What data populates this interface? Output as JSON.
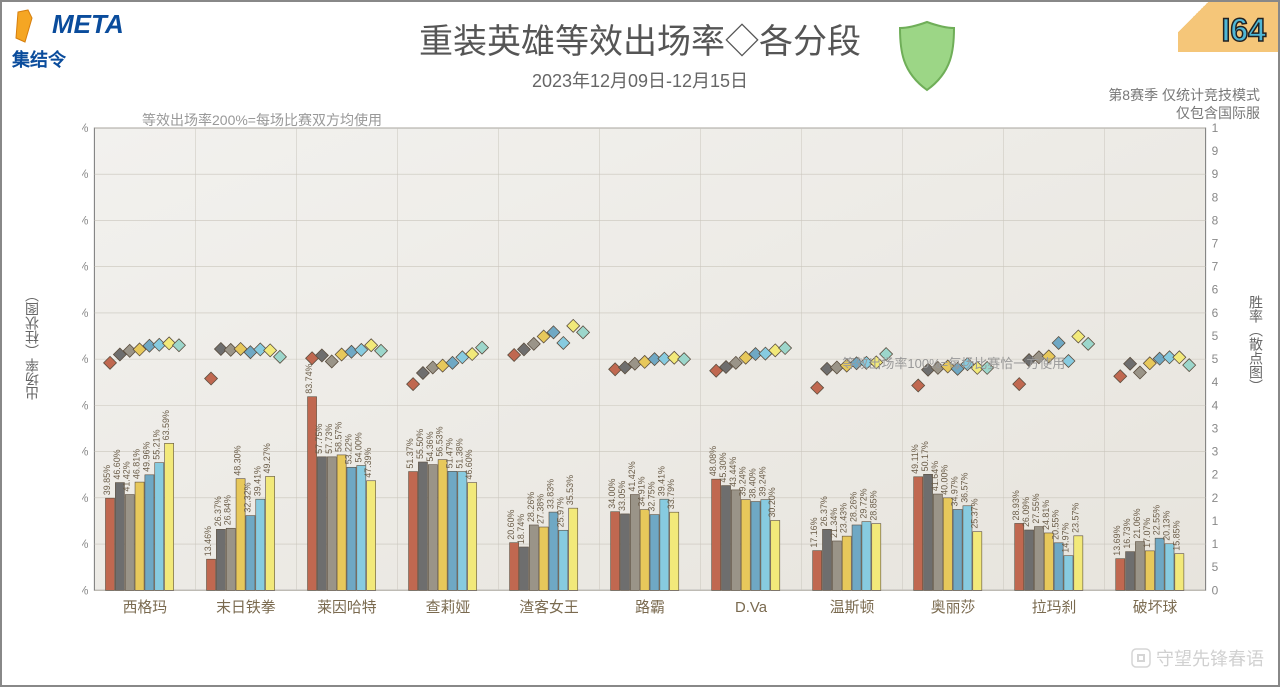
{
  "title": "重装英雄等效出场率◇各分段",
  "subtitle": "2023年12月09日-12月15日",
  "issue": "I64",
  "logo_top": "META",
  "logo_bottom": "集结令",
  "note_left": "等效出场率200%=每场比赛双方均使用",
  "note_mid": "等效出场率100%=每场比赛恰一方使用",
  "note_right_1": "第8赛季 仅统计竞技模式",
  "note_right_2": "仅包含国际服",
  "y_left_label": "出场率（柱状图）",
  "y_right_label": "胜率（散点图）",
  "watermark": "守望先锋春语",
  "left_axis": {
    "min": 0,
    "max": 200,
    "step": 20,
    "suffix": "%"
  },
  "right_axis": {
    "min": 0,
    "max": 100,
    "step": 5,
    "suffix": "%"
  },
  "background_color": "#ffffff",
  "plot_bg_gradient": [
    "#f2f1ee",
    "#e7e4dd"
  ],
  "grid_color": "#c9c5bb",
  "border_color": "#777",
  "bar_border": "#5b4e3f",
  "bar_label_color": "#6a5c48",
  "bar_label_fontsize": 9,
  "axis_tick_color": "#888",
  "axis_tick_fontsize": 12,
  "cat_label_color": "#7a6a4f",
  "cat_label_fontsize": 15,
  "tier_colors": [
    "#c06850",
    "#6e6e6e",
    "#9a9488",
    "#e7c85b",
    "#6fa8c4",
    "#87cbe0",
    "#f2e97a",
    "#9cd6cb"
  ],
  "diamond_border": "#5b4e3f",
  "diamond_size": 13,
  "heroes": [
    {
      "name": "西格玛",
      "pick": [
        39.85,
        46.6,
        41.42,
        46.81,
        49.96,
        55.21,
        63.59,
        null
      ],
      "win": [
        49.2,
        51.0,
        51.8,
        52.1,
        52.9,
        53.1,
        53.4,
        53.0
      ]
    },
    {
      "name": "末日铁拳",
      "pick": [
        13.46,
        26.37,
        26.84,
        48.3,
        32.32,
        39.41,
        49.27,
        null
      ],
      "win": [
        45.8,
        52.2,
        52.0,
        52.2,
        51.5,
        52.1,
        51.9,
        50.5
      ]
    },
    {
      "name": "莱因哈特",
      "pick": [
        83.74,
        57.75,
        57.73,
        58.57,
        53.22,
        54.0,
        47.39,
        null
      ],
      "win": [
        50.2,
        50.8,
        49.5,
        51.0,
        51.6,
        52.0,
        53.0,
        51.8
      ]
    },
    {
      "name": "查莉娅",
      "pick": [
        51.37,
        55.5,
        54.36,
        56.53,
        51.47,
        51.38,
        46.6,
        null
      ],
      "win": [
        44.6,
        47.0,
        48.2,
        48.6,
        49.2,
        50.4,
        51.1,
        52.5
      ]
    },
    {
      "name": "渣客女王",
      "pick": [
        20.6,
        18.74,
        28.26,
        27.38,
        33.83,
        25.97,
        35.53,
        null
      ],
      "win": [
        50.9,
        52.1,
        53.3,
        54.9,
        55.8,
        53.5,
        57.2,
        55.8
      ]
    },
    {
      "name": "路霸",
      "pick": [
        34.0,
        33.05,
        41.42,
        34.91,
        32.75,
        39.41,
        33.79,
        null
      ],
      "win": [
        47.8,
        48.2,
        49.0,
        49.4,
        50.0,
        50.1,
        50.3,
        50.0
      ]
    },
    {
      "name": "D.Va",
      "pick": [
        48.08,
        45.3,
        43.44,
        39.24,
        38.4,
        39.24,
        30.2,
        null
      ],
      "win": [
        47.5,
        48.3,
        49.2,
        50.3,
        51.1,
        51.2,
        51.9,
        52.4
      ]
    },
    {
      "name": "温斯顿",
      "pick": [
        17.16,
        26.37,
        21.34,
        23.43,
        28.26,
        29.72,
        28.85,
        null
      ],
      "win": [
        43.8,
        47.9,
        48.2,
        48.6,
        49.1,
        49.2,
        49.3,
        51.1
      ]
    },
    {
      "name": "奥丽莎",
      "pick": [
        49.11,
        50.17,
        41.64,
        40.0,
        34.97,
        36.57,
        25.37,
        null
      ],
      "win": [
        44.3,
        47.7,
        48.1,
        48.4,
        47.9,
        48.9,
        48.1,
        48.1
      ]
    },
    {
      "name": "拉玛刹",
      "pick": [
        28.93,
        26.09,
        27.55,
        24.81,
        20.55,
        14.97,
        23.57,
        null
      ],
      "win": [
        44.6,
        49.8,
        50.4,
        50.6,
        53.5,
        49.6,
        54.9,
        53.3
      ]
    },
    {
      "name": "破坏球",
      "pick": [
        13.69,
        16.73,
        21.06,
        17.07,
        22.55,
        20.13,
        15.85,
        null
      ],
      "win": [
        46.3,
        49.0,
        47.1,
        49.1,
        50.1,
        50.4,
        50.4,
        48.7
      ]
    }
  ]
}
